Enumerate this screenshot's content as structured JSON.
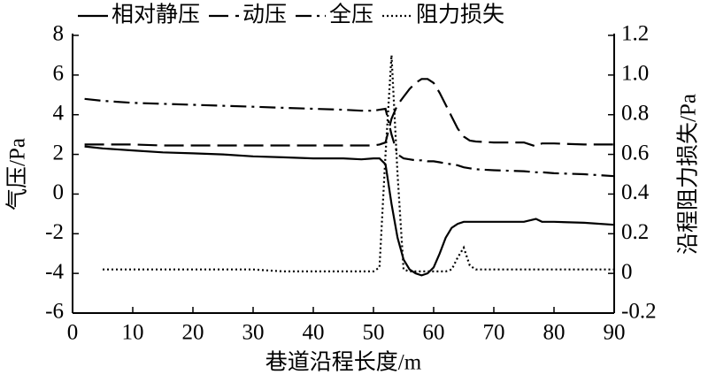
{
  "chart_data": {
    "type": "line",
    "xlabel": "巷道沿程长度/m",
    "ylabel": "气压/Pa",
    "y2label": "沿程阻力损失/Pa",
    "xlim": [
      0,
      90
    ],
    "xticks": [
      0,
      10,
      20,
      30,
      40,
      50,
      60,
      70,
      80,
      90
    ],
    "ylim": [
      -6,
      8
    ],
    "yticks": [
      -6,
      -4,
      -2,
      0,
      2,
      4,
      6,
      8
    ],
    "y2lim": [
      -0.2,
      1.2
    ],
    "y2ticks": [
      -0.2,
      0,
      0.2,
      0.4,
      0.6,
      0.8,
      {
        "value": 1,
        "label": "1.0"
      },
      1.2
    ],
    "x": [
      2,
      5,
      10,
      15,
      20,
      25,
      30,
      35,
      40,
      45,
      48,
      50,
      51,
      52,
      53,
      54,
      55,
      56,
      57,
      58,
      59,
      60,
      61,
      62,
      63,
      64,
      65,
      66,
      67,
      70,
      75,
      77,
      78,
      80,
      85,
      90
    ],
    "series": [
      {
        "name": "相对静压",
        "color": "#000000",
        "dash": "solid",
        "values": [
          2.4,
          2.3,
          2.2,
          2.1,
          2.05,
          2.0,
          1.9,
          1.85,
          1.8,
          1.8,
          1.75,
          1.8,
          1.8,
          1.5,
          -0.5,
          -2.2,
          -3.3,
          -3.8,
          -4.0,
          -4.1,
          -4.0,
          -3.7,
          -3.0,
          -2.2,
          -1.7,
          -1.5,
          -1.4,
          -1.4,
          -1.4,
          -1.4,
          -1.4,
          -1.25,
          -1.4,
          -1.4,
          -1.45,
          -1.55
        ]
      },
      {
        "name": "动压",
        "color": "#000000",
        "dash": "dashed",
        "values": [
          2.5,
          2.5,
          2.5,
          2.45,
          2.45,
          2.45,
          2.45,
          2.45,
          2.45,
          2.45,
          2.45,
          2.45,
          2.5,
          2.6,
          3.8,
          4.5,
          4.9,
          5.3,
          5.6,
          5.8,
          5.8,
          5.6,
          5.1,
          4.5,
          3.9,
          3.3,
          2.9,
          2.7,
          2.65,
          2.6,
          2.6,
          2.4,
          2.55,
          2.55,
          2.5,
          2.5
        ]
      },
      {
        "name": "全压",
        "color": "#000000",
        "dash": "dashdot",
        "values": [
          4.8,
          4.7,
          4.6,
          4.55,
          4.5,
          4.45,
          4.4,
          4.35,
          4.3,
          4.25,
          4.2,
          4.2,
          4.25,
          4.3,
          3.0,
          2.0,
          1.8,
          1.75,
          1.7,
          1.7,
          1.65,
          1.65,
          1.6,
          1.55,
          1.5,
          1.45,
          1.35,
          1.3,
          1.25,
          1.2,
          1.15,
          1.1,
          1.1,
          1.05,
          1.0,
          0.9
        ]
      },
      {
        "name": "阻力损失",
        "color": "#000000",
        "dash": "dotted",
        "axis": "y2",
        "values": [
          null,
          0.02,
          0.02,
          0.02,
          0.02,
          0.02,
          0.02,
          0.01,
          0.01,
          0.01,
          0.01,
          0.01,
          0.03,
          0.6,
          1.1,
          0.5,
          0.02,
          0.01,
          0.01,
          0.01,
          0.01,
          0.01,
          0.01,
          0.01,
          0.02,
          0.08,
          0.13,
          0.04,
          0.02,
          0.02,
          0.02,
          0.02,
          0.02,
          0.02,
          0.02,
          0.02
        ]
      }
    ]
  }
}
